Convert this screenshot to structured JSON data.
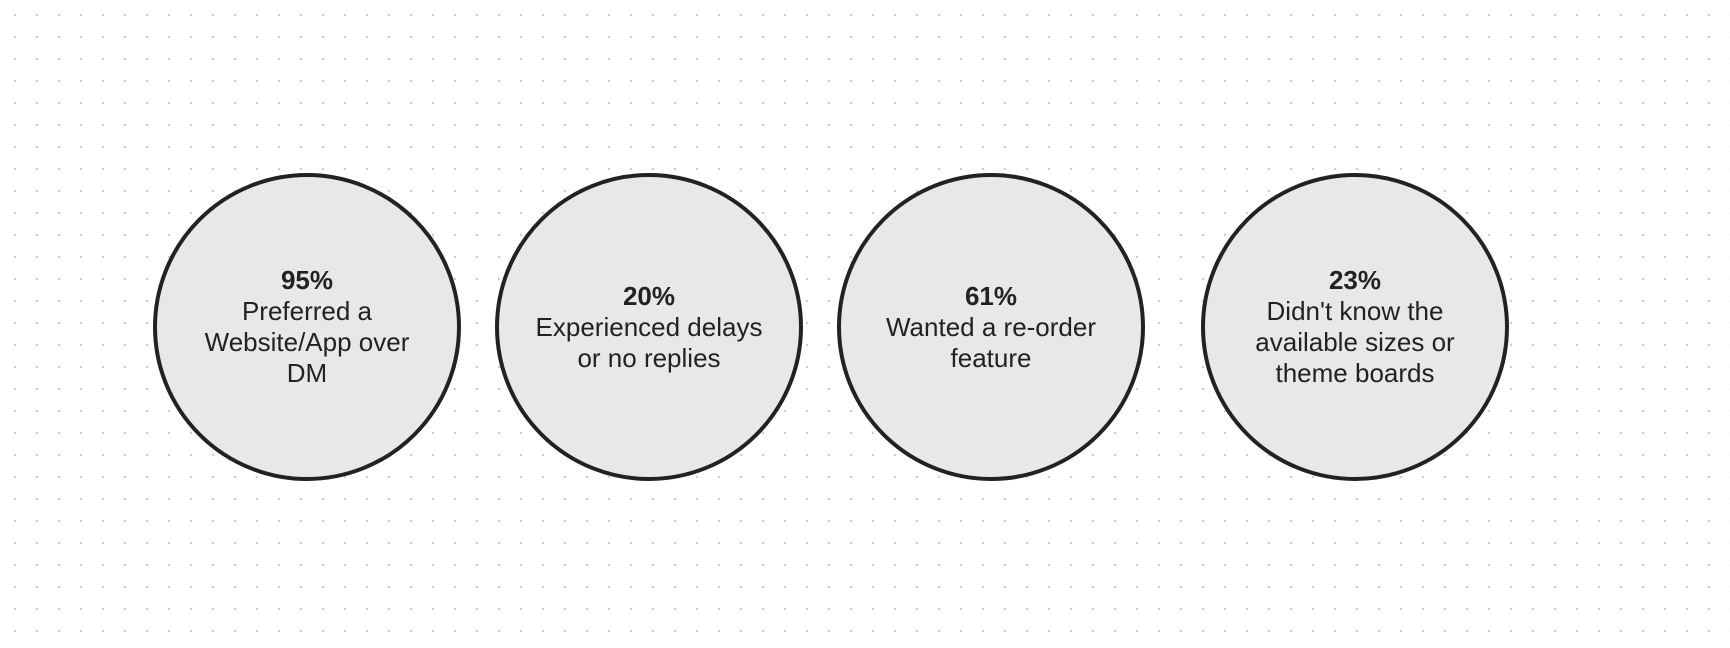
{
  "nodes": [
    {
      "stat": "95%",
      "label": "Preferred a Website/App over DM"
    },
    {
      "stat": "20%",
      "label": "Experienced delays or no replies"
    },
    {
      "stat": "61%",
      "label": "Wanted a re-order feature"
    },
    {
      "stat": "23%",
      "label": "Didn't know the available sizes or theme boards"
    }
  ]
}
